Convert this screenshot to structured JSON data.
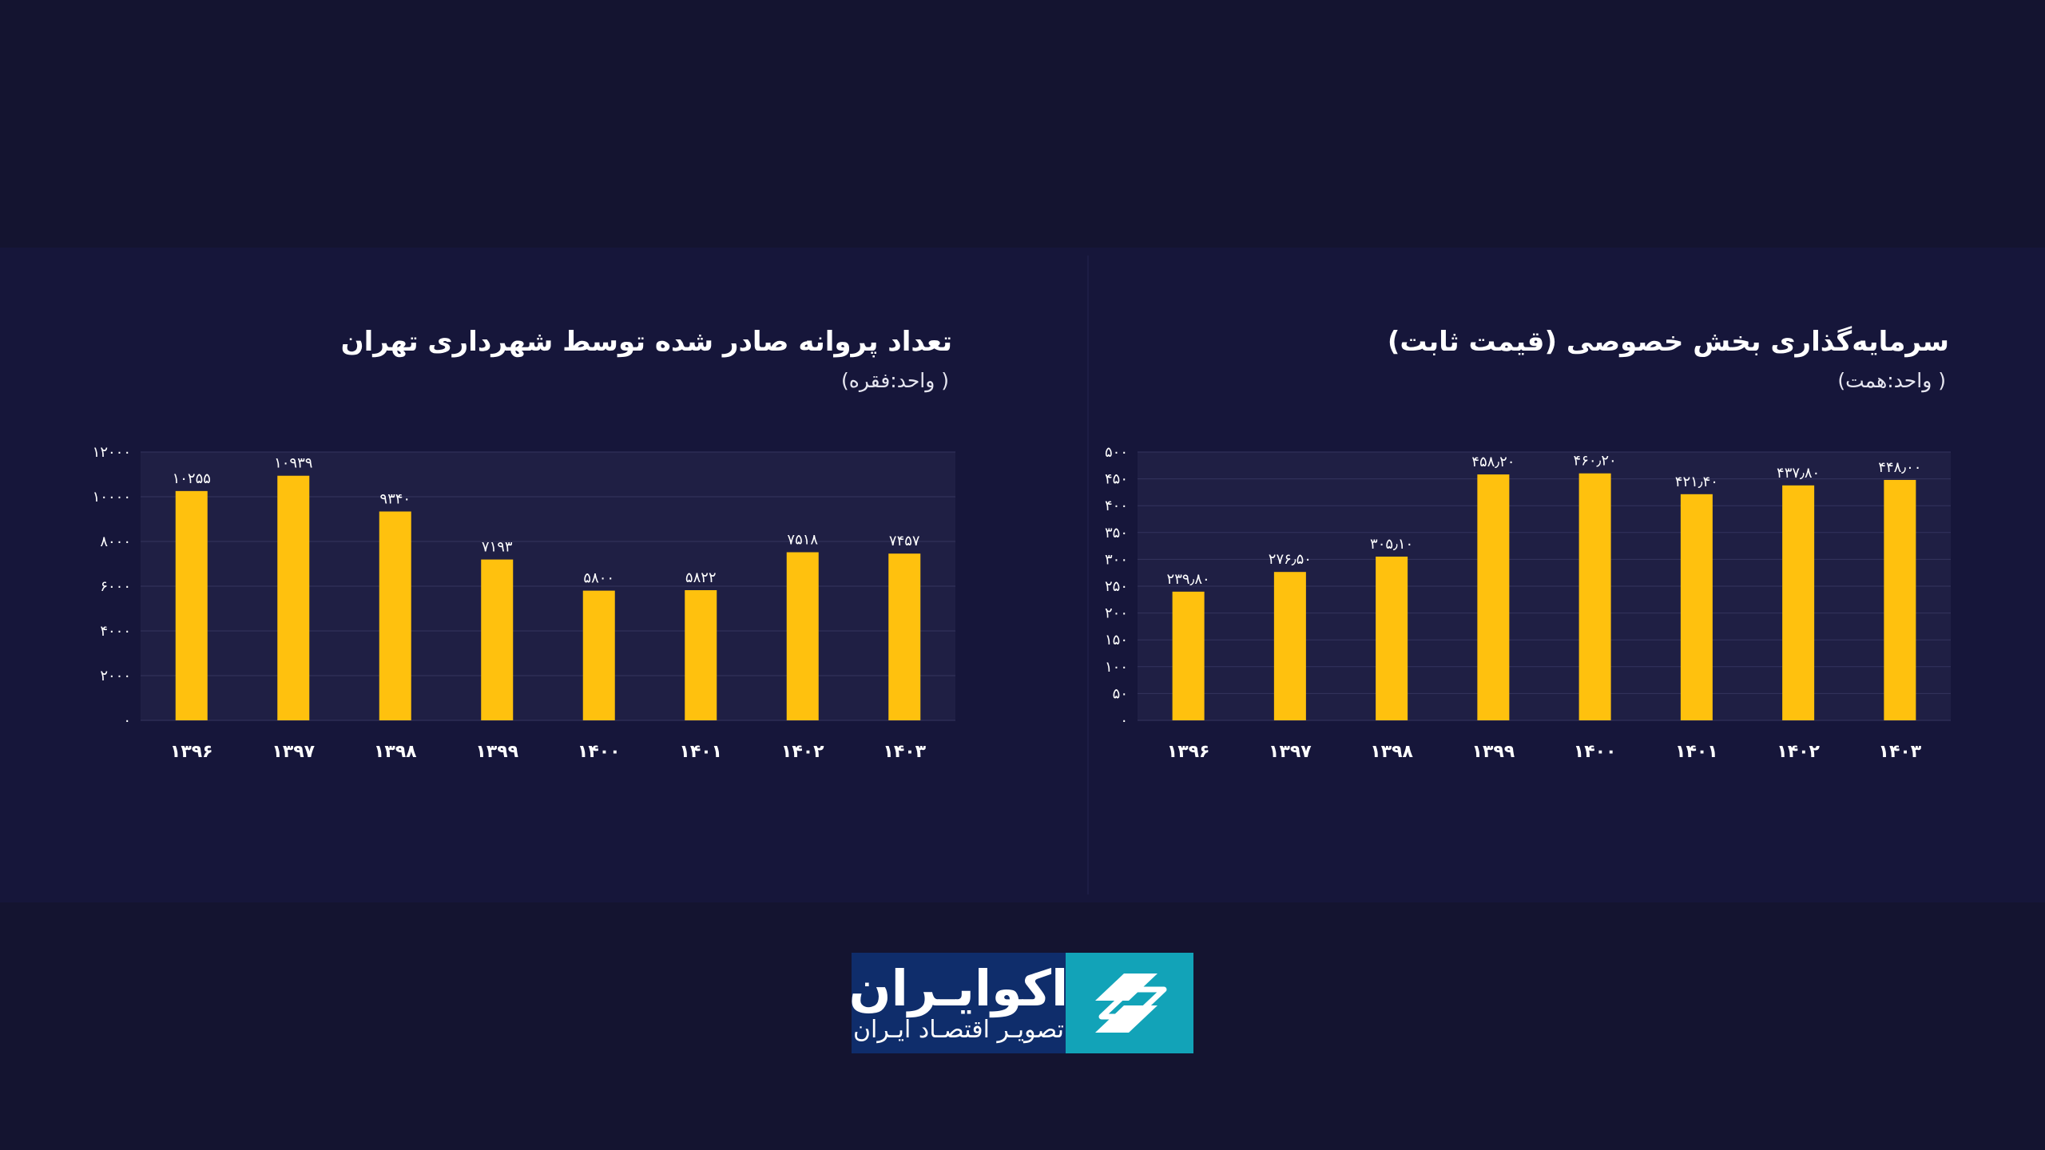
{
  "colors": {
    "background": "#141430",
    "panel": "#16163a",
    "plot": "#1f1f44",
    "bar": "#ffc10e",
    "logo_blue": "#0f2d6b",
    "logo_teal": "#12a3b8"
  },
  "chart_data": [
    {
      "type": "bar",
      "title": "تعداد پروانه صادر شده توسط شهرداری تهران",
      "subtitle": "( واحد:فقره)",
      "categories": [
        "۱۳۹۶",
        "۱۳۹۷",
        "۱۳۹۸",
        "۱۳۹۹",
        "۱۴۰۰",
        "۱۴۰۱",
        "۱۴۰۲",
        "۱۴۰۳"
      ],
      "values": [
        10255,
        10939,
        9340,
        7193,
        5800,
        5822,
        7518,
        7457
      ],
      "value_labels": [
        "۱۰۲۵۵",
        "۱۰۹۳۹",
        "۹۳۴۰",
        "۷۱۹۳",
        "۵۸۰۰",
        "۵۸۲۲",
        "۷۵۱۸",
        "۷۴۵۷"
      ],
      "yticks": [
        0,
        2000,
        4000,
        6000,
        8000,
        10000,
        12000
      ],
      "ytick_labels": [
        "۰",
        "۲۰۰۰",
        "۴۰۰۰",
        "۶۰۰۰",
        "۸۰۰۰",
        "۱۰۰۰۰",
        "۱۲۰۰۰"
      ],
      "ylim": [
        0,
        12000
      ],
      "grid": true,
      "xlabel": "",
      "ylabel": ""
    },
    {
      "type": "bar",
      "title": "سرمایه‌گذاری بخش خصوصی (قیمت ثابت)",
      "subtitle": "( واحد:همت)",
      "categories": [
        "۱۳۹۶",
        "۱۳۹۷",
        "۱۳۹۸",
        "۱۳۹۹",
        "۱۴۰۰",
        "۱۴۰۱",
        "۱۴۰۲",
        "۱۴۰۳"
      ],
      "values": [
        239.8,
        276.5,
        305.1,
        458.2,
        460.2,
        421.4,
        437.8,
        448.0
      ],
      "value_labels": [
        "۲۳۹٫۸۰",
        "۲۷۶٫۵۰",
        "۳۰۵٫۱۰",
        "۴۵۸٫۲۰",
        "۴۶۰٫۲۰",
        "۴۲۱٫۴۰",
        "۴۳۷٫۸۰",
        "۴۴۸٫۰۰"
      ],
      "yticks": [
        0,
        50,
        100,
        150,
        200,
        250,
        300,
        350,
        400,
        450,
        500
      ],
      "ytick_labels": [
        "۰",
        "۵۰",
        "۱۰۰",
        "۱۵۰",
        "۲۰۰",
        "۲۵۰",
        "۳۰۰",
        "۳۵۰",
        "۴۰۰",
        "۴۵۰",
        "۵۰۰"
      ],
      "ylim": [
        0,
        500
      ],
      "grid": true,
      "xlabel": "",
      "ylabel": ""
    }
  ],
  "logo": {
    "name": "اکوایـران",
    "tagline": "تصویـر اقتصـاد ایـران"
  }
}
